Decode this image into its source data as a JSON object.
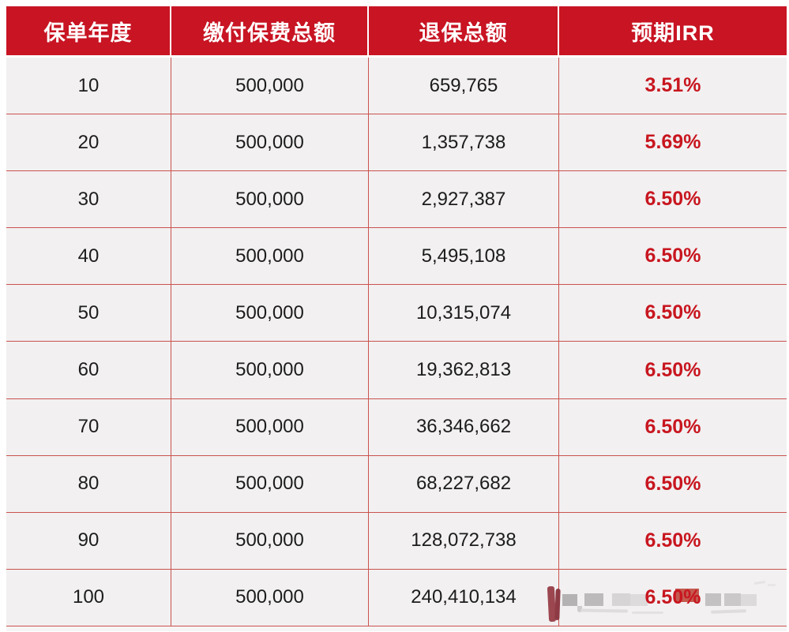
{
  "table": {
    "columns": [
      "保单年度",
      "缴付保费总额",
      "退保总额",
      "预期IRR"
    ],
    "rows": [
      {
        "year": "10",
        "premium": "500,000",
        "surrender": "659,765",
        "irr": "3.51%"
      },
      {
        "year": "20",
        "premium": "500,000",
        "surrender": "1,357,738",
        "irr": "5.69%"
      },
      {
        "year": "30",
        "premium": "500,000",
        "surrender": "2,927,387",
        "irr": "6.50%"
      },
      {
        "year": "40",
        "premium": "500,000",
        "surrender": "5,495,108",
        "irr": "6.50%"
      },
      {
        "year": "50",
        "premium": "500,000",
        "surrender": "10,315,074",
        "irr": "6.50%"
      },
      {
        "year": "60",
        "premium": "500,000",
        "surrender": "19,362,813",
        "irr": "6.50%"
      },
      {
        "year": "70",
        "premium": "500,000",
        "surrender": "36,346,662",
        "irr": "6.50%"
      },
      {
        "year": "80",
        "premium": "500,000",
        "surrender": "68,227,682",
        "irr": "6.50%"
      },
      {
        "year": "90",
        "premium": "500,000",
        "surrender": "128,072,738",
        "irr": "6.50%"
      },
      {
        "year": "100",
        "premium": "500,000",
        "surrender": "240,410,134",
        "irr": "6.50%"
      }
    ]
  },
  "colors": {
    "header_bg": "#c81423",
    "irr_text": "#c8161f",
    "grid_line": "#c9534e",
    "row_bg": "#f2f0f1",
    "page_bg": "#ffffff"
  }
}
